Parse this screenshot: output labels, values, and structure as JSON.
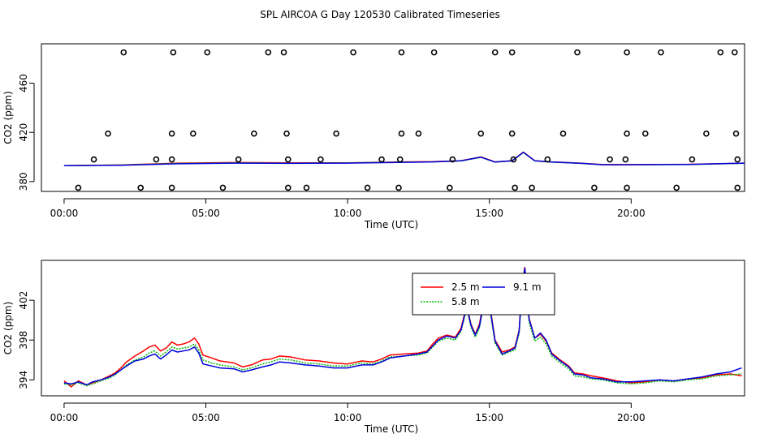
{
  "figure_title": "SPL AIRCOA G  Day 120530  Calibrated Timeseries",
  "chart_data": [
    {
      "type": "scatter",
      "title": "",
      "xlabel": "Time (UTC)",
      "ylabel": "CO2 (ppm)",
      "xlim": [
        -0.8,
        24.0
      ],
      "ylim": [
        372,
        492
      ],
      "xticks": [
        0,
        5,
        10,
        15,
        20
      ],
      "xtick_labels": [
        "00:00",
        "05:00",
        "10:00",
        "15:00",
        "20:00"
      ],
      "yticks": [
        380,
        420,
        460
      ],
      "ytick_labels": [
        "380",
        "420",
        "460"
      ],
      "calibration_points": {
        "marker": "open-circle",
        "x": [
          2.1,
          3.85,
          5.05,
          7.2,
          7.75,
          10.2,
          11.9,
          13.05,
          15.2,
          15.8,
          18.1,
          19.85,
          21.05,
          23.15,
          23.65,
          1.55,
          3.8,
          4.55,
          6.7,
          7.85,
          9.6,
          11.9,
          12.5,
          14.7,
          15.8,
          17.6,
          19.85,
          20.5,
          22.65,
          23.7,
          1.05,
          3.25,
          3.8,
          6.15,
          7.9,
          9.05,
          11.2,
          11.85,
          13.7,
          15.85,
          17.05,
          19.25,
          19.8,
          22.15,
          23.75,
          0.5,
          2.7,
          3.8,
          5.6,
          7.9,
          8.55,
          10.7,
          11.8,
          13.6,
          15.9,
          16.5,
          18.7,
          19.85,
          21.6,
          23.75
        ],
        "y": [
          485,
          485,
          485,
          485,
          485,
          485,
          485,
          485,
          485,
          485,
          485,
          485,
          485,
          485,
          485,
          419,
          419,
          419,
          419,
          419,
          419,
          419,
          419,
          419,
          419,
          419,
          419,
          419,
          419,
          419,
          398,
          398,
          398,
          398,
          398,
          398,
          398,
          398,
          398,
          398,
          398,
          398,
          398,
          398,
          398,
          375,
          375,
          375,
          375,
          375,
          375,
          375,
          375,
          375,
          375,
          375,
          375,
          375,
          375,
          375
        ]
      },
      "series": [
        {
          "name": "2.5 m",
          "color": "#ff0000",
          "dash": "solid",
          "x": [
            0,
            2,
            4,
            6,
            8,
            10,
            12,
            13,
            14,
            14.7,
            15.2,
            15.8,
            16.2,
            16.6,
            17.2,
            18.2,
            19,
            20,
            22,
            24
          ],
          "y": [
            393,
            393.5,
            395,
            395.5,
            395.2,
            395.3,
            396,
            396.2,
            397,
            400,
            396,
            397,
            404,
            397,
            396,
            395,
            393.8,
            393.8,
            394,
            395
          ]
        },
        {
          "name": "5.8 m",
          "color": "#00cc00",
          "dash": "dotted",
          "x": [
            0,
            2,
            4,
            6,
            8,
            10,
            12,
            13,
            14,
            14.7,
            15.2,
            15.8,
            16.2,
            16.6,
            17.2,
            18.2,
            19,
            20,
            22,
            24
          ],
          "y": [
            393,
            393.4,
            394.8,
            395.2,
            395,
            395.2,
            395.8,
            396,
            396.8,
            399.6,
            395.8,
            396.8,
            403.6,
            396.8,
            395.8,
            394.8,
            393.6,
            393.6,
            393.8,
            394.8
          ]
        },
        {
          "name": "9.1 m",
          "color": "#0000dd",
          "dash": "solid",
          "x": [
            0,
            2,
            4,
            6,
            8,
            10,
            12,
            13,
            14,
            14.7,
            15.2,
            15.8,
            16.2,
            16.6,
            17.2,
            18.2,
            19,
            20,
            22,
            24
          ],
          "y": [
            393,
            393.3,
            394.5,
            395,
            394.8,
            395,
            395.7,
            396,
            396.9,
            399.8,
            395.9,
            396.9,
            403.8,
            396.9,
            395.9,
            394.9,
            393.7,
            393.7,
            393.9,
            395
          ]
        }
      ]
    },
    {
      "type": "line",
      "title": "",
      "xlabel": "Time (UTC)",
      "ylabel": "CO2 (ppm)",
      "xlim": [
        -0.8,
        24.0
      ],
      "ylim": [
        392.4,
        406.0
      ],
      "xticks": [
        0,
        5,
        10,
        15,
        20
      ],
      "xtick_labels": [
        "00:00",
        "05:00",
        "10:00",
        "15:00",
        "20:00"
      ],
      "yticks": [
        394,
        398,
        402
      ],
      "ytick_labels": [
        "394",
        "398",
        "402"
      ],
      "legend": {
        "position": "top-center",
        "columns": 2
      },
      "series": [
        {
          "name": "2.5 m",
          "color": "#ff0000",
          "dash": "solid",
          "x": [
            0,
            0.25,
            0.5,
            0.8,
            1.0,
            1.3,
            1.6,
            1.8,
            2.0,
            2.2,
            2.5,
            2.8,
            3.0,
            3.2,
            3.4,
            3.6,
            3.8,
            4.0,
            4.2,
            4.4,
            4.6,
            4.75,
            4.9,
            5.2,
            5.5,
            6.0,
            6.3,
            6.6,
            7.0,
            7.3,
            7.6,
            8.0,
            8.5,
            9.0,
            9.5,
            10.0,
            10.5,
            10.9,
            11.2,
            11.5,
            12.0,
            12.5,
            12.8,
            13.0,
            13.2,
            13.5,
            13.8,
            14.0,
            14.2,
            14.35,
            14.5,
            14.65,
            14.75,
            14.85,
            15.0,
            15.2,
            15.45,
            15.7,
            15.9,
            16.05,
            16.15,
            16.25,
            16.4,
            16.6,
            16.8,
            17.0,
            17.2,
            17.5,
            17.8,
            18.0,
            18.3,
            18.6,
            19.0,
            19.5,
            20.0,
            20.5,
            21.0,
            21.5,
            22.0,
            22.5,
            23.0,
            23.5,
            23.9
          ],
          "y": [
            393.9,
            393.3,
            393.9,
            393.5,
            393.7,
            394.0,
            394.4,
            394.7,
            395.2,
            395.8,
            396.4,
            396.9,
            397.3,
            397.5,
            396.9,
            397.2,
            397.8,
            397.5,
            397.6,
            397.8,
            398.2,
            397.6,
            396.5,
            396.2,
            395.9,
            395.7,
            395.3,
            395.5,
            396.0,
            396.1,
            396.4,
            396.3,
            396.0,
            395.9,
            395.7,
            395.6,
            395.9,
            395.8,
            396.1,
            396.5,
            396.6,
            396.7,
            396.9,
            397.6,
            398.2,
            398.5,
            398.3,
            399.2,
            401.5,
            399.6,
            398.6,
            399.6,
            401.2,
            402.6,
            401.8,
            398.0,
            396.8,
            397.0,
            397.3,
            399.0,
            403.6,
            405.3,
            400.2,
            398.2,
            398.6,
            397.9,
            396.7,
            396.0,
            395.4,
            394.7,
            394.6,
            394.4,
            394.2,
            393.9,
            393.7,
            393.8,
            394.0,
            393.9,
            394.1,
            394.2,
            394.5,
            394.6,
            394.4
          ]
        },
        {
          "name": "5.8 m",
          "color": "#00bb00",
          "dash": "dotted",
          "x": [
            0,
            0.25,
            0.5,
            0.8,
            1.0,
            1.3,
            1.6,
            1.8,
            2.0,
            2.2,
            2.5,
            2.8,
            3.0,
            3.2,
            3.4,
            3.6,
            3.8,
            4.0,
            4.2,
            4.4,
            4.6,
            4.75,
            4.9,
            5.2,
            5.5,
            6.0,
            6.3,
            6.6,
            7.0,
            7.3,
            7.6,
            8.0,
            8.5,
            9.0,
            9.5,
            10.0,
            10.5,
            10.9,
            11.2,
            11.5,
            12.0,
            12.5,
            12.8,
            13.0,
            13.2,
            13.5,
            13.8,
            14.0,
            14.2,
            14.35,
            14.5,
            14.65,
            14.75,
            14.85,
            15.0,
            15.2,
            15.45,
            15.7,
            15.9,
            16.05,
            16.15,
            16.25,
            16.4,
            16.6,
            16.8,
            17.0,
            17.2,
            17.5,
            17.8,
            18.0,
            18.3,
            18.6,
            19.0,
            19.5,
            20.0,
            20.5,
            21.0,
            21.5,
            22.0,
            22.5,
            23.0,
            23.5,
            23.9
          ],
          "y": [
            393.6,
            393.5,
            393.7,
            393.4,
            393.6,
            393.9,
            394.2,
            394.5,
            395.0,
            395.5,
            396.0,
            396.3,
            396.7,
            396.9,
            396.4,
            396.8,
            397.3,
            397.1,
            397.2,
            397.3,
            397.6,
            397.0,
            396.0,
            395.7,
            395.5,
            395.3,
            395.0,
            395.2,
            395.6,
            395.8,
            396.1,
            396.0,
            395.7,
            395.6,
            395.4,
            395.4,
            395.7,
            395.6,
            395.9,
            396.3,
            396.4,
            396.5,
            396.7,
            397.3,
            397.9,
            398.2,
            398.0,
            398.9,
            401.2,
            399.3,
            398.3,
            399.2,
            400.8,
            402.2,
            401.4,
            397.7,
            396.5,
            396.8,
            397.0,
            398.7,
            403.3,
            404.9,
            399.8,
            397.9,
            398.3,
            397.6,
            396.4,
            395.7,
            395.1,
            394.4,
            394.3,
            394.1,
            394.0,
            393.7,
            393.6,
            393.7,
            393.9,
            393.8,
            394.0,
            394.1,
            394.4,
            394.5,
            394.6
          ]
        },
        {
          "name": "9.1 m",
          "color": "#0000dd",
          "dash": "solid",
          "x": [
            0,
            0.25,
            0.5,
            0.8,
            1.0,
            1.3,
            1.6,
            1.8,
            2.0,
            2.2,
            2.5,
            2.8,
            3.0,
            3.2,
            3.4,
            3.6,
            3.8,
            4.0,
            4.2,
            4.4,
            4.6,
            4.75,
            4.9,
            5.2,
            5.5,
            6.0,
            6.3,
            6.6,
            7.0,
            7.3,
            7.6,
            8.0,
            8.5,
            9.0,
            9.5,
            10.0,
            10.5,
            10.9,
            11.2,
            11.5,
            12.0,
            12.5,
            12.8,
            13.0,
            13.2,
            13.5,
            13.8,
            14.0,
            14.2,
            14.35,
            14.5,
            14.65,
            14.75,
            14.85,
            15.0,
            15.2,
            15.45,
            15.7,
            15.9,
            16.05,
            16.15,
            16.25,
            16.4,
            16.6,
            16.8,
            17.0,
            17.2,
            17.5,
            17.8,
            18.0,
            18.3,
            18.6,
            19.0,
            19.5,
            20.0,
            20.5,
            21.0,
            21.5,
            22.0,
            22.5,
            23.0,
            23.5,
            23.9
          ],
          "y": [
            393.7,
            393.6,
            393.8,
            393.5,
            393.8,
            394.0,
            394.3,
            394.6,
            395.0,
            395.4,
            395.9,
            396.1,
            396.4,
            396.6,
            396.1,
            396.5,
            397.0,
            396.8,
            396.9,
            397.0,
            397.3,
            396.7,
            395.6,
            395.4,
            395.2,
            395.1,
            394.8,
            395.0,
            395.3,
            395.5,
            395.8,
            395.7,
            395.5,
            395.4,
            395.2,
            395.2,
            395.5,
            395.5,
            395.8,
            396.2,
            396.4,
            396.6,
            396.8,
            397.4,
            398.0,
            398.4,
            398.2,
            399.0,
            401.4,
            399.5,
            398.5,
            399.4,
            401.0,
            402.4,
            401.6,
            397.9,
            396.6,
            396.9,
            397.2,
            398.9,
            403.5,
            405.2,
            400.1,
            398.2,
            398.7,
            398.0,
            396.6,
            395.9,
            395.3,
            394.6,
            394.5,
            394.2,
            394.1,
            393.8,
            393.8,
            393.9,
            394.0,
            393.9,
            394.1,
            394.3,
            394.6,
            394.8,
            395.2
          ]
        }
      ]
    }
  ]
}
